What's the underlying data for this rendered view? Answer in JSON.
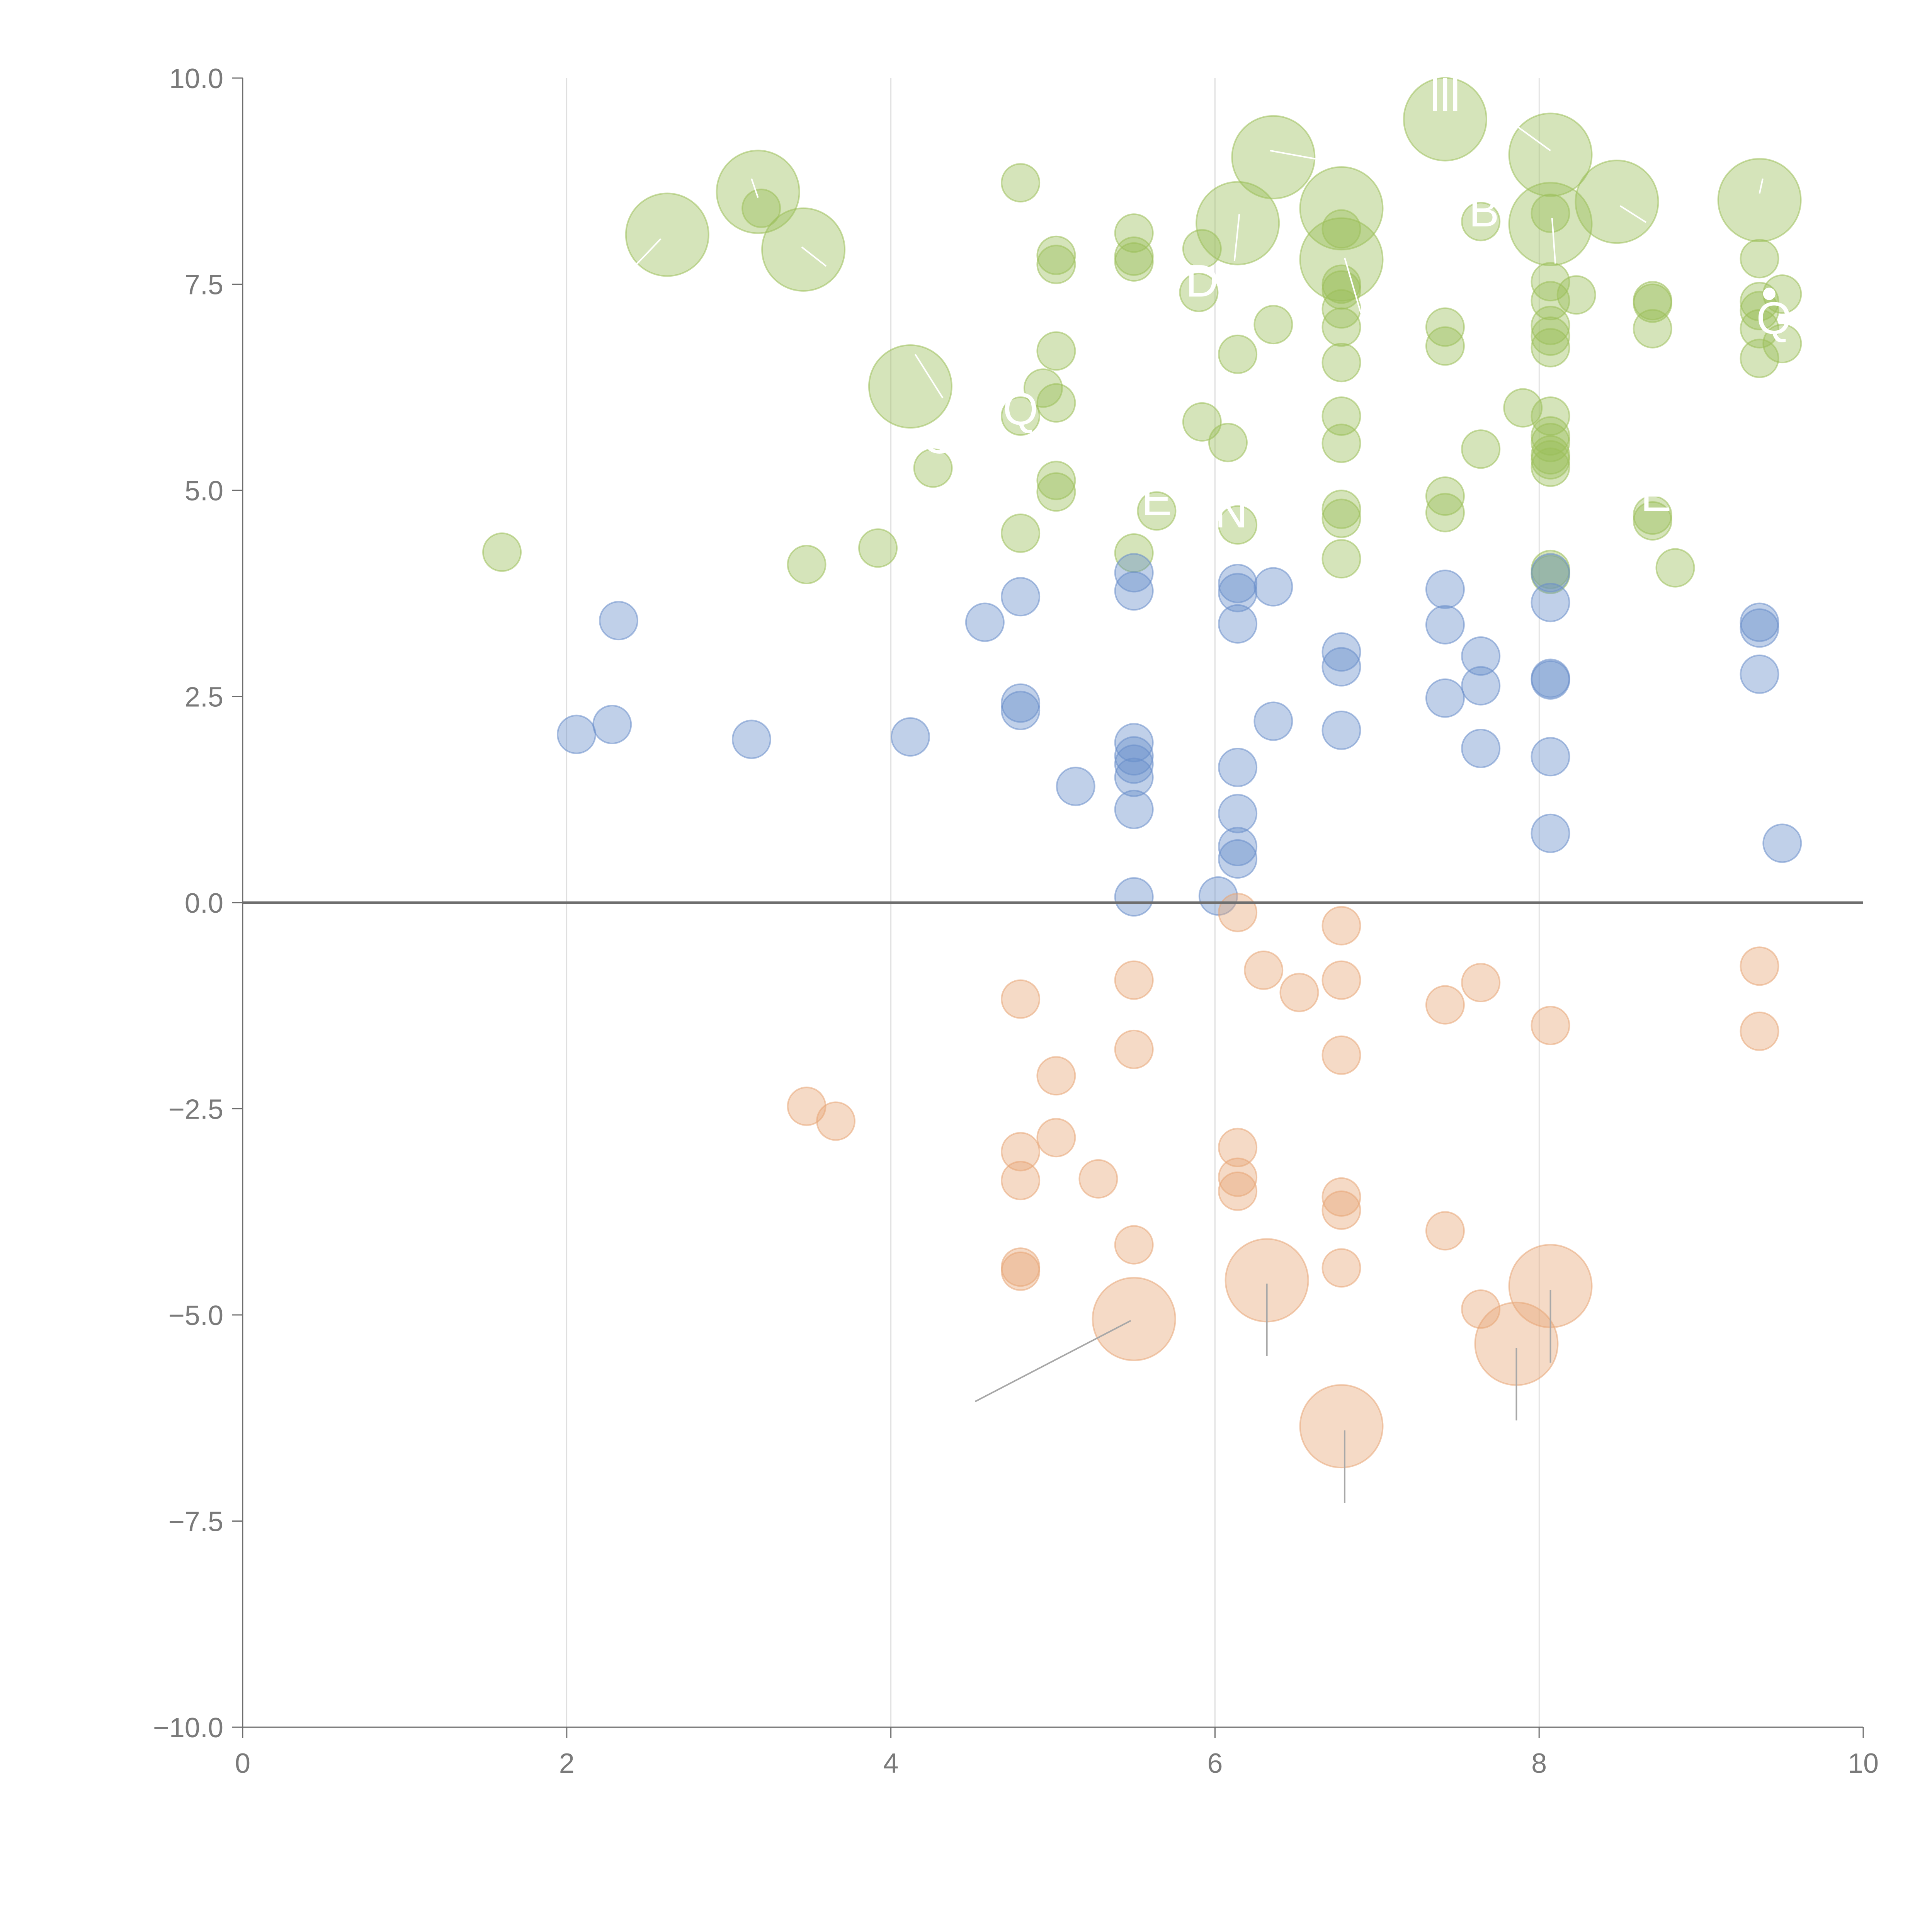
{
  "chart_data": {
    "type": "scatter",
    "title": "",
    "xlabel": "",
    "ylabel": "",
    "xlim": [
      0,
      10
    ],
    "ylim": [
      -10,
      10
    ],
    "x_ticks": [
      0,
      2,
      4,
      6,
      8,
      10
    ],
    "x_tick_labels": [
      "0",
      "2",
      "4",
      "6",
      "8",
      "10"
    ],
    "y_ticks": [
      10,
      7.5,
      5,
      2.5,
      0,
      -2.5,
      -5,
      -7.5,
      -10
    ],
    "y_tick_labels": [
      "10.0",
      "7.5",
      "5.0",
      "2.5",
      "0.0",
      "−2.5",
      "−5.0",
      "−7.5",
      "−10.0"
    ],
    "vertical_grid": [
      2,
      4,
      6,
      8
    ],
    "zero_line": 0,
    "series": [
      {
        "name": "positive-high",
        "color": "#9cbf5a",
        "points": [
          {
            "x": 1.6,
            "y": 4.25,
            "s": 1
          },
          {
            "x": 2.62,
            "y": 8.1,
            "s": 3
          },
          {
            "x": 3.18,
            "y": 8.62,
            "s": 3
          },
          {
            "x": 3.2,
            "y": 8.42,
            "s": 1
          },
          {
            "x": 3.46,
            "y": 7.92,
            "s": 3
          },
          {
            "x": 3.48,
            "y": 4.1,
            "s": 1
          },
          {
            "x": 3.92,
            "y": 4.3,
            "s": 1
          },
          {
            "x": 4.12,
            "y": 6.26,
            "s": 3
          },
          {
            "x": 4.26,
            "y": 5.27,
            "s": 1
          },
          {
            "x": 4.8,
            "y": 8.73,
            "s": 1
          },
          {
            "x": 4.8,
            "y": 5.9,
            "s": 1
          },
          {
            "x": 4.8,
            "y": 4.48,
            "s": 1
          },
          {
            "x": 4.94,
            "y": 6.24,
            "s": 1
          },
          {
            "x": 5.02,
            "y": 7.85,
            "s": 1
          },
          {
            "x": 5.02,
            "y": 7.74,
            "s": 1
          },
          {
            "x": 5.02,
            "y": 6.69,
            "s": 1
          },
          {
            "x": 5.02,
            "y": 6.06,
            "s": 1
          },
          {
            "x": 5.02,
            "y": 5.12,
            "s": 1
          },
          {
            "x": 5.02,
            "y": 4.98,
            "s": 1
          },
          {
            "x": 5.5,
            "y": 8.12,
            "s": 1
          },
          {
            "x": 5.5,
            "y": 7.84,
            "s": 1
          },
          {
            "x": 5.5,
            "y": 7.77,
            "s": 1
          },
          {
            "x": 5.5,
            "y": 4.24,
            "s": 1
          },
          {
            "x": 5.64,
            "y": 4.75,
            "s": 1
          },
          {
            "x": 5.9,
            "y": 7.4,
            "s": 1
          },
          {
            "x": 5.92,
            "y": 7.93,
            "s": 1
          },
          {
            "x": 5.92,
            "y": 5.83,
            "s": 1
          },
          {
            "x": 6.08,
            "y": 5.58,
            "s": 1
          },
          {
            "x": 6.14,
            "y": 8.24,
            "s": 3
          },
          {
            "x": 6.14,
            "y": 6.65,
            "s": 1
          },
          {
            "x": 6.14,
            "y": 4.58,
            "s": 1
          },
          {
            "x": 6.36,
            "y": 9.04,
            "s": 3
          },
          {
            "x": 6.36,
            "y": 7.01,
            "s": 1
          },
          {
            "x": 6.78,
            "y": 8.42,
            "s": 3
          },
          {
            "x": 6.78,
            "y": 8.17,
            "s": 1
          },
          {
            "x": 6.78,
            "y": 7.8,
            "s": 3
          },
          {
            "x": 6.78,
            "y": 7.5,
            "s": 1
          },
          {
            "x": 6.78,
            "y": 7.43,
            "s": 1
          },
          {
            "x": 6.78,
            "y": 7.2,
            "s": 1
          },
          {
            "x": 6.78,
            "y": 6.98,
            "s": 1
          },
          {
            "x": 6.78,
            "y": 6.55,
            "s": 1
          },
          {
            "x": 6.78,
            "y": 5.9,
            "s": 1
          },
          {
            "x": 6.78,
            "y": 5.57,
            "s": 1
          },
          {
            "x": 6.78,
            "y": 4.77,
            "s": 1
          },
          {
            "x": 6.78,
            "y": 4.66,
            "s": 1
          },
          {
            "x": 6.78,
            "y": 4.17,
            "s": 1
          },
          {
            "x": 7.42,
            "y": 9.5,
            "s": 3
          },
          {
            "x": 7.42,
            "y": 6.98,
            "s": 1
          },
          {
            "x": 7.42,
            "y": 6.75,
            "s": 1
          },
          {
            "x": 7.42,
            "y": 4.93,
            "s": 1
          },
          {
            "x": 7.42,
            "y": 4.73,
            "s": 1
          },
          {
            "x": 7.64,
            "y": 8.26,
            "s": 1
          },
          {
            "x": 7.64,
            "y": 5.5,
            "s": 1
          },
          {
            "x": 7.9,
            "y": 6.0,
            "s": 1
          },
          {
            "x": 8.07,
            "y": 9.07,
            "s": 3
          },
          {
            "x": 8.07,
            "y": 8.36,
            "s": 1
          },
          {
            "x": 8.07,
            "y": 8.23,
            "s": 3
          },
          {
            "x": 8.07,
            "y": 7.53,
            "s": 1
          },
          {
            "x": 8.07,
            "y": 7.3,
            "s": 1
          },
          {
            "x": 8.07,
            "y": 7.0,
            "s": 1
          },
          {
            "x": 8.07,
            "y": 6.87,
            "s": 1
          },
          {
            "x": 8.07,
            "y": 6.73,
            "s": 1
          },
          {
            "x": 8.07,
            "y": 5.9,
            "s": 1
          },
          {
            "x": 8.07,
            "y": 5.66,
            "s": 1
          },
          {
            "x": 8.07,
            "y": 5.58,
            "s": 1
          },
          {
            "x": 8.07,
            "y": 5.43,
            "s": 1
          },
          {
            "x": 8.07,
            "y": 5.37,
            "s": 1
          },
          {
            "x": 8.07,
            "y": 5.28,
            "s": 1
          },
          {
            "x": 8.07,
            "y": 4.04,
            "s": 1
          },
          {
            "x": 8.07,
            "y": 3.98,
            "s": 1
          },
          {
            "x": 8.23,
            "y": 7.37,
            "s": 1
          },
          {
            "x": 8.48,
            "y": 8.5,
            "s": 3
          },
          {
            "x": 8.7,
            "y": 7.3,
            "s": 1
          },
          {
            "x": 8.7,
            "y": 7.27,
            "s": 1
          },
          {
            "x": 8.7,
            "y": 6.96,
            "s": 1
          },
          {
            "x": 8.7,
            "y": 4.7,
            "s": 1
          },
          {
            "x": 8.7,
            "y": 4.63,
            "s": 1
          },
          {
            "x": 8.84,
            "y": 4.06,
            "s": 1
          },
          {
            "x": 9.36,
            "y": 8.52,
            "s": 3
          },
          {
            "x": 9.36,
            "y": 7.81,
            "s": 1
          },
          {
            "x": 9.36,
            "y": 7.29,
            "s": 1
          },
          {
            "x": 9.36,
            "y": 7.18,
            "s": 1
          },
          {
            "x": 9.36,
            "y": 6.96,
            "s": 1
          },
          {
            "x": 9.36,
            "y": 6.6,
            "s": 1
          },
          {
            "x": 9.5,
            "y": 7.38,
            "s": 1
          },
          {
            "x": 9.5,
            "y": 6.78,
            "s": 1
          }
        ]
      },
      {
        "name": "positive-low",
        "color": "#6a8ecb",
        "points": [
          {
            "x": 2.06,
            "y": 2.04,
            "s": 1
          },
          {
            "x": 2.28,
            "y": 2.16,
            "s": 1
          },
          {
            "x": 2.32,
            "y": 3.42,
            "s": 1
          },
          {
            "x": 3.14,
            "y": 1.98,
            "s": 1
          },
          {
            "x": 4.12,
            "y": 2.01,
            "s": 1
          },
          {
            "x": 4.58,
            "y": 3.4,
            "s": 1
          },
          {
            "x": 4.8,
            "y": 3.71,
            "s": 1
          },
          {
            "x": 4.8,
            "y": 2.42,
            "s": 1
          },
          {
            "x": 4.8,
            "y": 2.33,
            "s": 1
          },
          {
            "x": 5.14,
            "y": 1.41,
            "s": 1
          },
          {
            "x": 5.5,
            "y": 4.0,
            "s": 1
          },
          {
            "x": 5.5,
            "y": 3.78,
            "s": 1
          },
          {
            "x": 5.5,
            "y": 1.94,
            "s": 1
          },
          {
            "x": 5.5,
            "y": 1.78,
            "s": 1
          },
          {
            "x": 5.5,
            "y": 1.68,
            "s": 1
          },
          {
            "x": 5.5,
            "y": 1.52,
            "s": 1
          },
          {
            "x": 5.5,
            "y": 1.13,
            "s": 1
          },
          {
            "x": 5.5,
            "y": 0.07,
            "s": 1
          },
          {
            "x": 6.02,
            "y": 0.08,
            "s": 1
          },
          {
            "x": 6.14,
            "y": 3.87,
            "s": 1
          },
          {
            "x": 6.14,
            "y": 3.76,
            "s": 1
          },
          {
            "x": 6.14,
            "y": 3.38,
            "s": 1
          },
          {
            "x": 6.14,
            "y": 1.64,
            "s": 1
          },
          {
            "x": 6.14,
            "y": 1.08,
            "s": 1
          },
          {
            "x": 6.14,
            "y": 0.68,
            "s": 1
          },
          {
            "x": 6.14,
            "y": 0.53,
            "s": 1
          },
          {
            "x": 6.36,
            "y": 3.83,
            "s": 1
          },
          {
            "x": 6.36,
            "y": 2.2,
            "s": 1
          },
          {
            "x": 6.78,
            "y": 3.04,
            "s": 1
          },
          {
            "x": 6.78,
            "y": 2.86,
            "s": 1
          },
          {
            "x": 6.78,
            "y": 2.09,
            "s": 1
          },
          {
            "x": 7.42,
            "y": 3.8,
            "s": 1
          },
          {
            "x": 7.42,
            "y": 3.37,
            "s": 1
          },
          {
            "x": 7.42,
            "y": 2.48,
            "s": 1
          },
          {
            "x": 7.64,
            "y": 2.99,
            "s": 1
          },
          {
            "x": 7.64,
            "y": 2.63,
            "s": 1
          },
          {
            "x": 7.64,
            "y": 1.87,
            "s": 1
          },
          {
            "x": 8.07,
            "y": 4.0,
            "s": 1
          },
          {
            "x": 8.07,
            "y": 3.64,
            "s": 1
          },
          {
            "x": 8.07,
            "y": 2.72,
            "s": 1
          },
          {
            "x": 8.07,
            "y": 2.7,
            "s": 1
          },
          {
            "x": 8.07,
            "y": 1.77,
            "s": 1
          },
          {
            "x": 8.07,
            "y": 0.84,
            "s": 1
          },
          {
            "x": 9.36,
            "y": 3.4,
            "s": 1
          },
          {
            "x": 9.36,
            "y": 3.33,
            "s": 1
          },
          {
            "x": 9.36,
            "y": 2.77,
            "s": 1
          },
          {
            "x": 9.5,
            "y": 0.72,
            "s": 1
          }
        ]
      },
      {
        "name": "negative",
        "color": "#e8a676",
        "points": [
          {
            "x": 3.48,
            "y": -2.47,
            "s": 1
          },
          {
            "x": 3.66,
            "y": -2.65,
            "s": 1
          },
          {
            "x": 4.8,
            "y": -1.17,
            "s": 1
          },
          {
            "x": 4.8,
            "y": -3.02,
            "s": 1
          },
          {
            "x": 4.8,
            "y": -3.37,
            "s": 1
          },
          {
            "x": 4.8,
            "y": -4.42,
            "s": 1
          },
          {
            "x": 4.8,
            "y": -4.47,
            "s": 1
          },
          {
            "x": 5.02,
            "y": -2.1,
            "s": 1
          },
          {
            "x": 5.02,
            "y": -2.85,
            "s": 1
          },
          {
            "x": 5.28,
            "y": -3.35,
            "s": 1
          },
          {
            "x": 5.5,
            "y": -0.94,
            "s": 1
          },
          {
            "x": 5.5,
            "y": -1.78,
            "s": 1
          },
          {
            "x": 5.5,
            "y": -4.15,
            "s": 1
          },
          {
            "x": 5.5,
            "y": -5.05,
            "s": 3
          },
          {
            "x": 6.14,
            "y": -0.12,
            "s": 1
          },
          {
            "x": 6.14,
            "y": -2.97,
            "s": 1
          },
          {
            "x": 6.14,
            "y": -3.33,
            "s": 1
          },
          {
            "x": 6.14,
            "y": -3.5,
            "s": 1
          },
          {
            "x": 6.3,
            "y": -0.82,
            "s": 1
          },
          {
            "x": 6.32,
            "y": -4.58,
            "s": 3
          },
          {
            "x": 6.52,
            "y": -1.09,
            "s": 1
          },
          {
            "x": 6.78,
            "y": -0.28,
            "s": 1
          },
          {
            "x": 6.78,
            "y": -0.94,
            "s": 1
          },
          {
            "x": 6.78,
            "y": -1.85,
            "s": 1
          },
          {
            "x": 6.78,
            "y": -3.57,
            "s": 1
          },
          {
            "x": 6.78,
            "y": -3.73,
            "s": 1
          },
          {
            "x": 6.78,
            "y": -4.43,
            "s": 1
          },
          {
            "x": 6.78,
            "y": -6.35,
            "s": 3
          },
          {
            "x": 7.42,
            "y": -1.24,
            "s": 1
          },
          {
            "x": 7.42,
            "y": -3.98,
            "s": 1
          },
          {
            "x": 7.64,
            "y": -0.97,
            "s": 1
          },
          {
            "x": 7.64,
            "y": -4.93,
            "s": 1
          },
          {
            "x": 7.86,
            "y": -5.35,
            "s": 3
          },
          {
            "x": 8.07,
            "y": -1.49,
            "s": 1
          },
          {
            "x": 8.07,
            "y": -4.65,
            "s": 3
          },
          {
            "x": 9.36,
            "y": -0.77,
            "s": 1
          },
          {
            "x": 9.36,
            "y": -1.56,
            "s": 1
          }
        ]
      }
    ],
    "leader_lines": [
      {
        "x1": 5.48,
        "y1": -5.07,
        "x2": 4.52,
        "y2": -6.05,
        "color": "#a8a8a8"
      },
      {
        "x1": 6.32,
        "y1": -4.62,
        "x2": 6.32,
        "y2": -5.5,
        "color": "#a8a8a8"
      },
      {
        "x1": 6.8,
        "y1": -6.4,
        "x2": 6.8,
        "y2": -7.28,
        "color": "#a8a8a8"
      },
      {
        "x1": 7.86,
        "y1": -5.4,
        "x2": 7.86,
        "y2": -6.28,
        "color": "#a8a8a8"
      },
      {
        "x1": 8.07,
        "y1": -4.7,
        "x2": 8.07,
        "y2": -5.58,
        "color": "#a8a8a8"
      },
      {
        "x1": 2.58,
        "y1": 8.05,
        "x2": 2.42,
        "y2": 7.72,
        "color": "#ffffff"
      },
      {
        "x1": 3.14,
        "y1": 8.78,
        "x2": 3.18,
        "y2": 8.55,
        "color": "#ffffff"
      },
      {
        "x1": 3.45,
        "y1": 7.95,
        "x2": 3.6,
        "y2": 7.72,
        "color": "#ffffff"
      },
      {
        "x1": 4.15,
        "y1": 6.65,
        "x2": 4.32,
        "y2": 6.12,
        "color": "#ffffff"
      },
      {
        "x1": 6.34,
        "y1": 9.12,
        "x2": 6.62,
        "y2": 9.02,
        "color": "#ffffff"
      },
      {
        "x1": 6.15,
        "y1": 8.35,
        "x2": 6.12,
        "y2": 7.78,
        "color": "#ffffff"
      },
      {
        "x1": 6.8,
        "y1": 7.82,
        "x2": 6.9,
        "y2": 7.15,
        "color": "#ffffff"
      },
      {
        "x1": 8.07,
        "y1": 9.12,
        "x2": 7.86,
        "y2": 9.42,
        "color": "#ffffff"
      },
      {
        "x1": 8.08,
        "y1": 8.3,
        "x2": 8.1,
        "y2": 7.75,
        "color": "#ffffff"
      },
      {
        "x1": 8.5,
        "y1": 8.45,
        "x2": 8.66,
        "y2": 8.25,
        "color": "#ffffff"
      },
      {
        "x1": 9.36,
        "y1": 8.6,
        "x2": 9.38,
        "y2": 8.78,
        "color": "#ffffff"
      }
    ],
    "annotations": [
      {
        "text": "lll",
        "x": 7.42,
        "y": 9.6,
        "color": "#ffffff"
      },
      {
        "text": "B",
        "x": 7.66,
        "y": 8.2,
        "color": "#ffffff"
      },
      {
        "text": "D",
        "x": 5.92,
        "y": 7.35,
        "color": "#ffffff"
      },
      {
        "text": "l",
        "x": 6.35,
        "y": 7.4,
        "color": "#ffffff"
      },
      {
        "text": "Q",
        "x": 4.8,
        "y": 5.8,
        "color": "#ffffff"
      },
      {
        "text": "O",
        "x": 4.3,
        "y": 5.45,
        "color": "#ffffff"
      },
      {
        "text": "E",
        "x": 5.64,
        "y": 4.7,
        "color": "#ffffff"
      },
      {
        "text": "N",
        "x": 6.1,
        "y": 4.55,
        "color": "#ffffff"
      },
      {
        "text": "E",
        "x": 8.72,
        "y": 4.75,
        "color": "#ffffff"
      },
      {
        "text": "Q",
        "x": 9.45,
        "y": 6.9,
        "color": "#ffffff"
      },
      {
        "text": "•",
        "x": 9.42,
        "y": 7.2,
        "color": "#ffffff"
      }
    ]
  }
}
